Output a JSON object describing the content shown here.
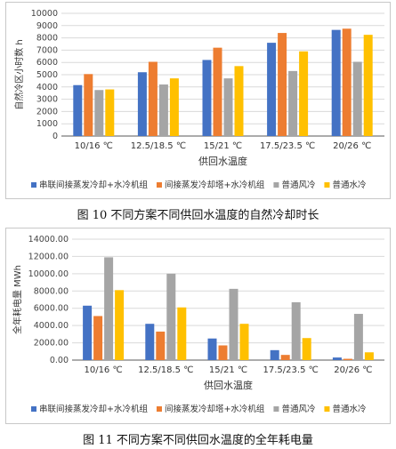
{
  "colors": {
    "s1": "#4472C4",
    "s2": "#ED7D31",
    "s3": "#A5A5A5",
    "s4": "#FFC000",
    "grid": "#d9d9d9",
    "axis": "#595959"
  },
  "figure1": {
    "caption": "图 10  不同方案不同供回水温度的自然冷却时长"
  },
  "figure2": {
    "caption": "图 11  不同方案不同供回水温度的全年耗电量"
  },
  "chart_data": [
    {
      "type": "bar",
      "categories": [
        "10/16 ℃",
        "12.5/18.5 ℃",
        "15/21 ℃",
        "17.5/23.5 ℃",
        "20/26 ℃"
      ],
      "series": [
        {
          "name": "串联间接蒸发冷却+水冷机组",
          "values": [
            4150,
            5200,
            6200,
            7600,
            8650
          ]
        },
        {
          "name": "间接蒸发冷却塔+水冷机组",
          "values": [
            5050,
            6050,
            7200,
            8400,
            8750
          ]
        },
        {
          "name": "普通风冷",
          "values": [
            3750,
            4200,
            4700,
            5300,
            6050
          ]
        },
        {
          "name": "普通水冷",
          "values": [
            3800,
            4700,
            5700,
            6900,
            8250
          ]
        }
      ],
      "xlabel": "供回水温度",
      "ylabel": "自然冷区小时数 h",
      "ylim": [
        0,
        10000
      ],
      "yticks": [
        "0",
        "1000",
        "2000",
        "3000",
        "4000",
        "5000",
        "6000",
        "7000",
        "8000",
        "9000",
        "10000"
      ],
      "grid": true,
      "legend": "bottom"
    },
    {
      "type": "bar",
      "categories": [
        "10/16 ℃",
        "12.5/18.5 ℃",
        "15/21 ℃",
        "17.5/23.5 ℃",
        "20/26 ℃"
      ],
      "series": [
        {
          "name": "串联间接蒸发冷却+水冷机组",
          "values": [
            6300,
            4200,
            2500,
            1150,
            300
          ]
        },
        {
          "name": "间接蒸发冷却塔+水冷机组",
          "values": [
            5100,
            3300,
            1700,
            600,
            150
          ]
        },
        {
          "name": "普通风冷",
          "values": [
            11900,
            10000,
            8250,
            6700,
            5350
          ]
        },
        {
          "name": "普通水冷",
          "values": [
            8100,
            6100,
            4200,
            2550,
            900
          ]
        }
      ],
      "xlabel": "供回水温度",
      "ylabel": "全年耗电量 MWh",
      "ylim": [
        0,
        14000
      ],
      "yticks": [
        "0.00",
        "2000.00",
        "4000.00",
        "6000.00",
        "8000.00",
        "10000.00",
        "12000.00",
        "14000.00"
      ],
      "grid": true,
      "legend": "bottom"
    }
  ]
}
